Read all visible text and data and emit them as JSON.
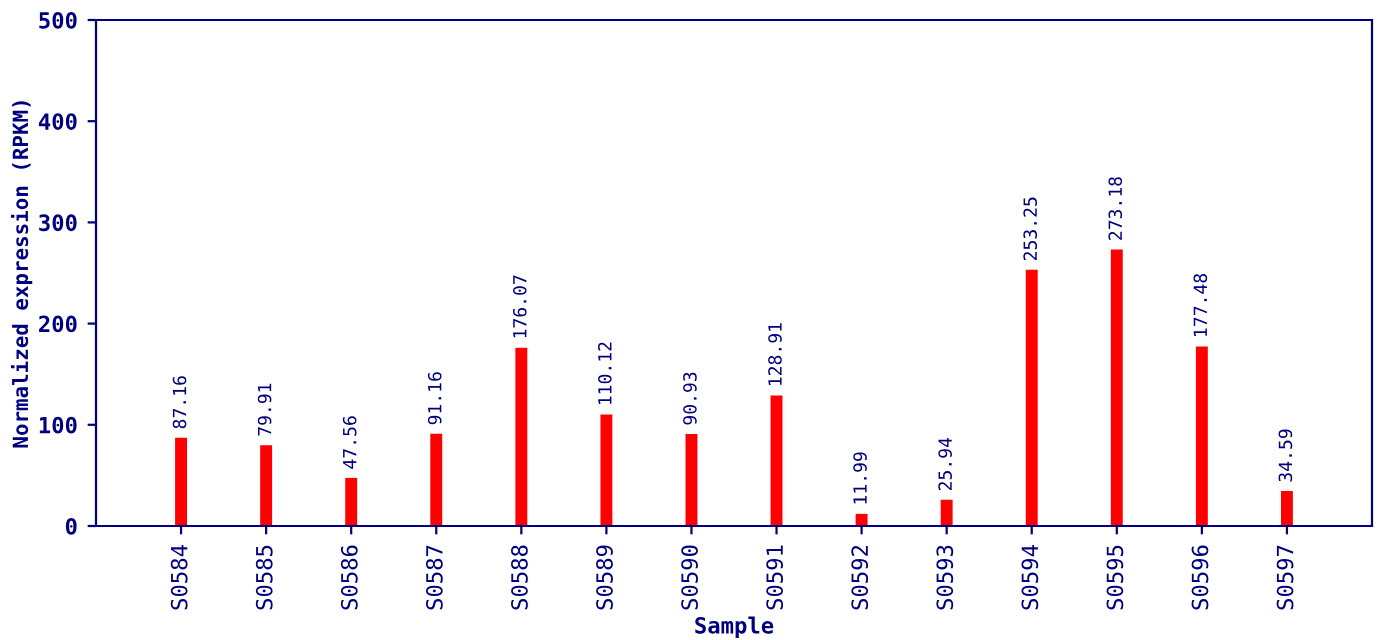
{
  "chart_data": {
    "type": "bar",
    "xlabel": "Sample",
    "ylabel": "Normalized expression (RPKM)",
    "categories": [
      "S0584",
      "S0585",
      "S0586",
      "S0587",
      "S0588",
      "S0589",
      "S0590",
      "S0591",
      "S0592",
      "S0593",
      "S0594",
      "S0595",
      "S0596",
      "S0597"
    ],
    "values": [
      87.16,
      79.91,
      47.56,
      91.16,
      176.07,
      110.12,
      90.93,
      128.91,
      11.99,
      25.94,
      253.25,
      273.18,
      177.48,
      34.59
    ],
    "color": "#ff0000",
    "ylim": [
      0,
      500
    ],
    "yticks": [
      0,
      100,
      200,
      300,
      400,
      500
    ],
    "data_labels": true,
    "grid": false,
    "legend": false
  }
}
